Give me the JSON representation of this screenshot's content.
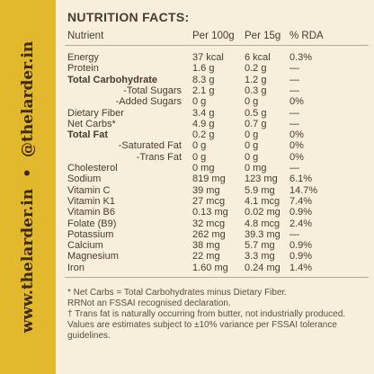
{
  "side_text": {
    "site": "www.thelarder.in",
    "separator": "•",
    "handle": "@thelarder.in"
  },
  "header": {
    "title": "NUTRITION FACTS:"
  },
  "table": {
    "columns": [
      "Nutrient",
      "Per 100g",
      "Per 15g",
      "% RDA"
    ],
    "rows": [
      [
        "Energy",
        "37 kcal",
        "6 kcal",
        "0.3%"
      ],
      [
        "Protein",
        "1.6 g",
        "0.2 g",
        "—"
      ],
      [
        "Total Carbohydrate",
        "8.3 g",
        "1.2 g",
        "—"
      ],
      [
        "-Total Sugars",
        "2.1 g",
        "0.3 g",
        "—"
      ],
      [
        "-Added Sugars",
        "0 g",
        "0 g",
        "0%"
      ],
      [
        "Dietary Fiber",
        "3.4 g",
        "0.5 g",
        "—"
      ],
      [
        "Net Carbs*",
        "4.9 g",
        "0.7 g",
        "—"
      ],
      [
        "Total Fat",
        "0.2 g",
        "0 g",
        "0%"
      ],
      [
        "-Saturated Fat",
        "0 g",
        "0 g",
        "0%"
      ],
      [
        "-Trans Fat",
        "0 g",
        "0 g",
        "0%"
      ],
      [
        "Cholesterol",
        "0 mg",
        "0 mg",
        "—"
      ],
      [
        "Sodium",
        "819 mg",
        "123 mg",
        "6.1%"
      ],
      [
        "Vitamin C",
        "39 mg",
        "5.9 mg",
        "14.7%"
      ],
      [
        "Vitamin K1",
        "27 mcg",
        "4.1 mcg",
        "7.4%"
      ],
      [
        "Vitamin B6",
        "0.13 mg",
        "0.02 mg",
        "0.9%"
      ],
      [
        "Folate (B9)",
        "32 mcg",
        "4.8 mcg",
        "2.4%"
      ],
      [
        "Potassium",
        "262 mg",
        "39.3 mg",
        "—"
      ],
      [
        "Calcium",
        "38 mg",
        "5.7 mg",
        "0.9%"
      ],
      [
        "Magnesium",
        "22 mg",
        "3.3 mg",
        "0.9%"
      ],
      [
        "Iron",
        "1.60 mg",
        "0.24 mg",
        "1.4%"
      ]
    ]
  },
  "notes": [
    "* Net Carbs = Total Carbohydrates minus Dietary Fiber.",
    "RRNot an FSSAI recognised declaration.",
    "† Trans fat is naturally occurring from butter, not industrially produced.",
    "Values are estimates subject to ±10% variance per FSSAI tolerance guidelines."
  ]
}
